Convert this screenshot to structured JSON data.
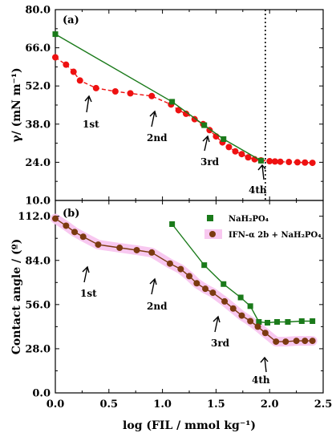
{
  "chart_data": [
    {
      "type": "line",
      "panel_label": "(a)",
      "ylabel": "γ/ (mN m⁻¹)",
      "xlim": [
        0.0,
        2.5
      ],
      "ylim": [
        10.0,
        80.0
      ],
      "yticks": [
        "10.0",
        "24.0",
        "38.0",
        "52.0",
        "66.0",
        "80.0"
      ],
      "ytick_values": [
        10,
        24,
        38,
        52,
        66,
        80
      ],
      "vline_x": 1.96,
      "series": [
        {
          "color": "#ee1111",
          "marker": "circle",
          "x": [
            0.0,
            0.1,
            0.17,
            0.23,
            0.38,
            0.56,
            0.7,
            0.9,
            1.08,
            1.15,
            1.22,
            1.3,
            1.38,
            1.44,
            1.5,
            1.56,
            1.62,
            1.68,
            1.74,
            1.8,
            1.86,
            1.92,
            2.0,
            2.05,
            2.1,
            2.18,
            2.26,
            2.33,
            2.4
          ],
          "values": [
            62.5,
            59.8,
            57.2,
            54.0,
            51.2,
            50.0,
            49.3,
            48.3,
            45.2,
            43.1,
            41.8,
            39.8,
            38.0,
            35.8,
            33.5,
            31.3,
            29.6,
            28.0,
            27.0,
            25.8,
            25.1,
            24.7,
            24.4,
            24.3,
            24.2,
            24.1,
            24.0,
            23.9,
            23.8
          ]
        },
        {
          "color": "#1a7a1a",
          "marker": "square",
          "x": [
            0.0,
            1.09,
            1.39,
            1.57,
            1.92
          ],
          "values": [
            71.0,
            46.2,
            37.6,
            32.5,
            24.6
          ]
        }
      ],
      "annotations": [
        "1st",
        "2nd",
        "3rd",
        "4th"
      ]
    },
    {
      "type": "line",
      "panel_label": "(b)",
      "ylabel": "Contact angle / (º)",
      "xlabel": "log (FIL / mmol kg⁻¹)",
      "xlim": [
        0.0,
        2.5
      ],
      "ylim": [
        0.0,
        122.0
      ],
      "xticks": [
        "0.0",
        "0.5",
        "1.0",
        "1.5",
        "2.0",
        "2.5"
      ],
      "xtick_values": [
        0.0,
        0.5,
        1.0,
        1.5,
        2.0,
        2.5
      ],
      "yticks": [
        "0.0",
        "28.0",
        "56.0",
        "84.0",
        "112.0"
      ],
      "ytick_values": [
        0,
        28,
        56,
        84,
        112
      ],
      "series": [
        {
          "name": "NaH₂PO₄",
          "color": "#1a7a1a",
          "marker": "square",
          "x": [
            1.09,
            1.39,
            1.57,
            1.73,
            1.82,
            1.9,
            1.98,
            2.07,
            2.17,
            2.3,
            2.4
          ],
          "values": [
            107.0,
            81.0,
            69.0,
            60.5,
            55.0,
            45.0,
            44.5,
            45.0,
            45.0,
            45.5,
            45.5
          ],
          "legend_color": "#1a7a1a",
          "legend_marker": "square"
        },
        {
          "name": "IFN-α 2b + NaH₂PO₄",
          "color": "#7b3a10",
          "marker": "circle",
          "x": [
            0.0,
            0.1,
            0.18,
            0.26,
            0.4,
            0.6,
            0.76,
            0.9,
            1.07,
            1.17,
            1.25,
            1.32,
            1.4,
            1.47,
            1.58,
            1.66,
            1.74,
            1.82,
            1.89,
            1.96,
            2.06,
            2.15,
            2.25,
            2.33,
            2.4
          ],
          "values": [
            110.5,
            106.0,
            102.0,
            99.0,
            94.0,
            92.0,
            90.5,
            89.0,
            82.0,
            78.5,
            74.0,
            69.5,
            66.0,
            63.5,
            58.0,
            53.5,
            49.0,
            45.5,
            42.0,
            38.0,
            32.5,
            32.5,
            33.0,
            33.0,
            33.0
          ],
          "legend_color": "#7b3a10",
          "legend_marker": "circle"
        }
      ],
      "annotations": [
        "1st",
        "2nd",
        "3rd",
        "4th"
      ]
    }
  ],
  "colors": {
    "red_series": "#ee1111",
    "green_series": "#1a7a1a",
    "brown_series": "#7b3a10",
    "highlight": "#f8c8f0"
  }
}
